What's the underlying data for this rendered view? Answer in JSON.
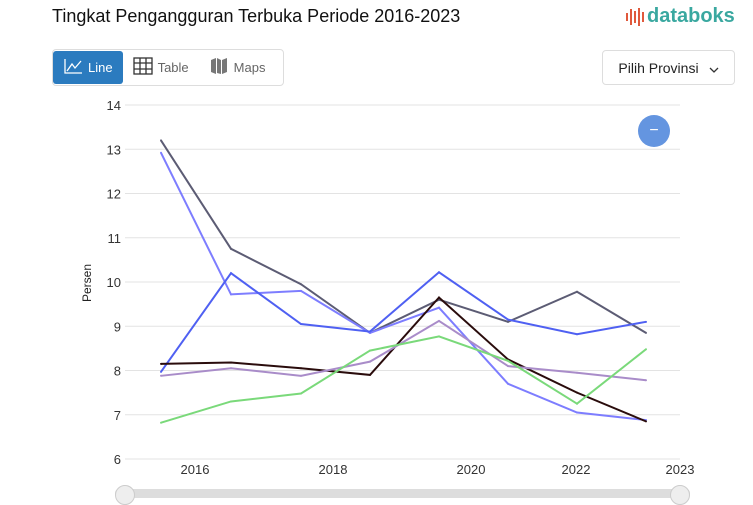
{
  "title": "Tingkat Pengangguran Terbuka Periode 2016-2023",
  "logo": "databoks",
  "tabs": [
    {
      "label": "Line",
      "icon": "line-chart-icon",
      "active": true
    },
    {
      "label": "Table",
      "icon": "table-icon"
    },
    {
      "label": "Maps",
      "icon": "map-icon"
    }
  ],
  "province_select": {
    "label": "Pilih Provinsi",
    "icon": "chevron-down-icon"
  },
  "zoom_button": "−",
  "chart_data": {
    "type": "line",
    "ylabel": "Persen",
    "ylim": [
      6,
      14
    ],
    "yticks": [
      "6",
      "7",
      "8",
      "9",
      "10",
      "11",
      "12",
      "13",
      "14"
    ],
    "x": [
      2016,
      2017,
      2018,
      2019,
      2020,
      2021,
      2022,
      2023
    ],
    "xtick_labels": [
      "2016",
      "2018",
      "2020",
      "2022",
      "2023"
    ],
    "grid": true,
    "series": [
      {
        "color": "#5c5c74",
        "values": [
          13.2,
          10.75,
          9.95,
          8.85,
          9.6,
          9.1,
          9.78,
          8.85
        ]
      },
      {
        "color": "#7d7dff",
        "values": [
          12.92,
          9.72,
          9.8,
          8.85,
          9.42,
          7.7,
          7.05,
          6.88
        ]
      },
      {
        "color": "#4f60f2",
        "values": [
          7.97,
          10.2,
          9.05,
          8.88,
          10.22,
          9.15,
          8.82,
          9.1
        ]
      },
      {
        "color": "#2a0c0c",
        "values": [
          8.15,
          8.18,
          8.05,
          7.9,
          9.65,
          8.25,
          7.5,
          6.85
        ]
      },
      {
        "color": "#a98cc9",
        "values": [
          7.88,
          8.05,
          7.88,
          8.2,
          9.12,
          8.1,
          7.95,
          7.78
        ]
      },
      {
        "color": "#7ad97a",
        "values": [
          6.82,
          7.3,
          7.48,
          8.45,
          8.77,
          8.22,
          7.25,
          8.48
        ]
      }
    ]
  }
}
